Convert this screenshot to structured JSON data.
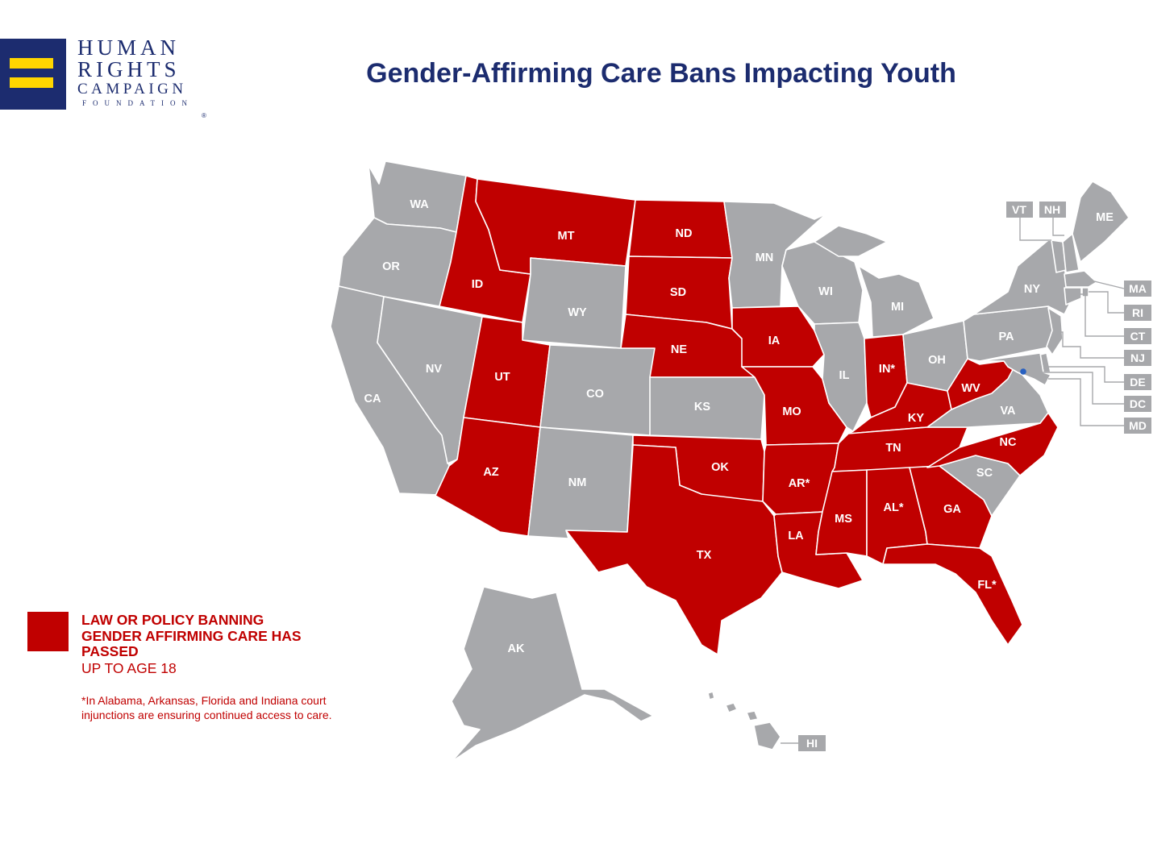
{
  "logo": {
    "line1": "HUMAN",
    "line2": "RIGHTS",
    "line3": "CAMPAIGN",
    "line4": "FOUNDATION",
    "registered": "®",
    "emblem": "equal-sign-icon",
    "colors": {
      "navy": "#1c2c6f",
      "gold": "#ffd600"
    }
  },
  "title": "Gender-Affirming Care Bans Impacting Youth",
  "colors": {
    "ban": "#c00000",
    "no_ban": "#a7a8ab",
    "title": "#1c2c6f"
  },
  "legend": {
    "label": "LAW OR POLICY BANNING GENDER AFFIRMING CARE HAS PASSED",
    "sublabel": "UP TO AGE 18"
  },
  "footnote": "*In Alabama, Arkansas, Florida and Indiana court injunctions are ensuring continued access to care.",
  "states": {
    "WA": {
      "label": "WA",
      "ban": false
    },
    "OR": {
      "label": "OR",
      "ban": false
    },
    "CA": {
      "label": "CA",
      "ban": false
    },
    "NV": {
      "label": "NV",
      "ban": false
    },
    "ID": {
      "label": "ID",
      "ban": true
    },
    "MT": {
      "label": "MT",
      "ban": true
    },
    "WY": {
      "label": "WY",
      "ban": false
    },
    "UT": {
      "label": "UT",
      "ban": true
    },
    "AZ": {
      "label": "AZ",
      "ban": true
    },
    "CO": {
      "label": "CO",
      "ban": false
    },
    "NM": {
      "label": "NM",
      "ban": false
    },
    "ND": {
      "label": "ND",
      "ban": true
    },
    "SD": {
      "label": "SD",
      "ban": true
    },
    "NE": {
      "label": "NE",
      "ban": true
    },
    "KS": {
      "label": "KS",
      "ban": false
    },
    "OK": {
      "label": "OK",
      "ban": true
    },
    "TX": {
      "label": "TX",
      "ban": true
    },
    "MN": {
      "label": "MN",
      "ban": false
    },
    "IA": {
      "label": "IA",
      "ban": true
    },
    "MO": {
      "label": "MO",
      "ban": true
    },
    "AR": {
      "label": "AR*",
      "ban": true
    },
    "LA": {
      "label": "LA",
      "ban": true
    },
    "WI": {
      "label": "WI",
      "ban": false
    },
    "IL": {
      "label": "IL",
      "ban": false
    },
    "MI": {
      "label": "MI",
      "ban": false
    },
    "IN": {
      "label": "IN*",
      "ban": true
    },
    "OH": {
      "label": "OH",
      "ban": false
    },
    "KY": {
      "label": "KY",
      "ban": true
    },
    "TN": {
      "label": "TN",
      "ban": true
    },
    "MS": {
      "label": "MS",
      "ban": true
    },
    "AL": {
      "label": "AL*",
      "ban": true
    },
    "GA": {
      "label": "GA",
      "ban": true
    },
    "FL": {
      "label": "FL*",
      "ban": true
    },
    "SC": {
      "label": "SC",
      "ban": false
    },
    "NC": {
      "label": "NC",
      "ban": true
    },
    "VA": {
      "label": "VA",
      "ban": false
    },
    "WV": {
      "label": "WV",
      "ban": true
    },
    "PA": {
      "label": "PA",
      "ban": false
    },
    "NY": {
      "label": "NY",
      "ban": false
    },
    "ME": {
      "label": "ME",
      "ban": false
    },
    "VT": {
      "label": "VT",
      "ban": false
    },
    "NH": {
      "label": "NH",
      "ban": false
    },
    "MA": {
      "label": "MA",
      "ban": false
    },
    "RI": {
      "label": "RI",
      "ban": false
    },
    "CT": {
      "label": "CT",
      "ban": false
    },
    "NJ": {
      "label": "NJ",
      "ban": false
    },
    "DE": {
      "label": "DE",
      "ban": false
    },
    "DC": {
      "label": "DC",
      "ban": false
    },
    "MD": {
      "label": "MD",
      "ban": false
    },
    "AK": {
      "label": "AK",
      "ban": false
    },
    "HI": {
      "label": "HI",
      "ban": false
    }
  }
}
